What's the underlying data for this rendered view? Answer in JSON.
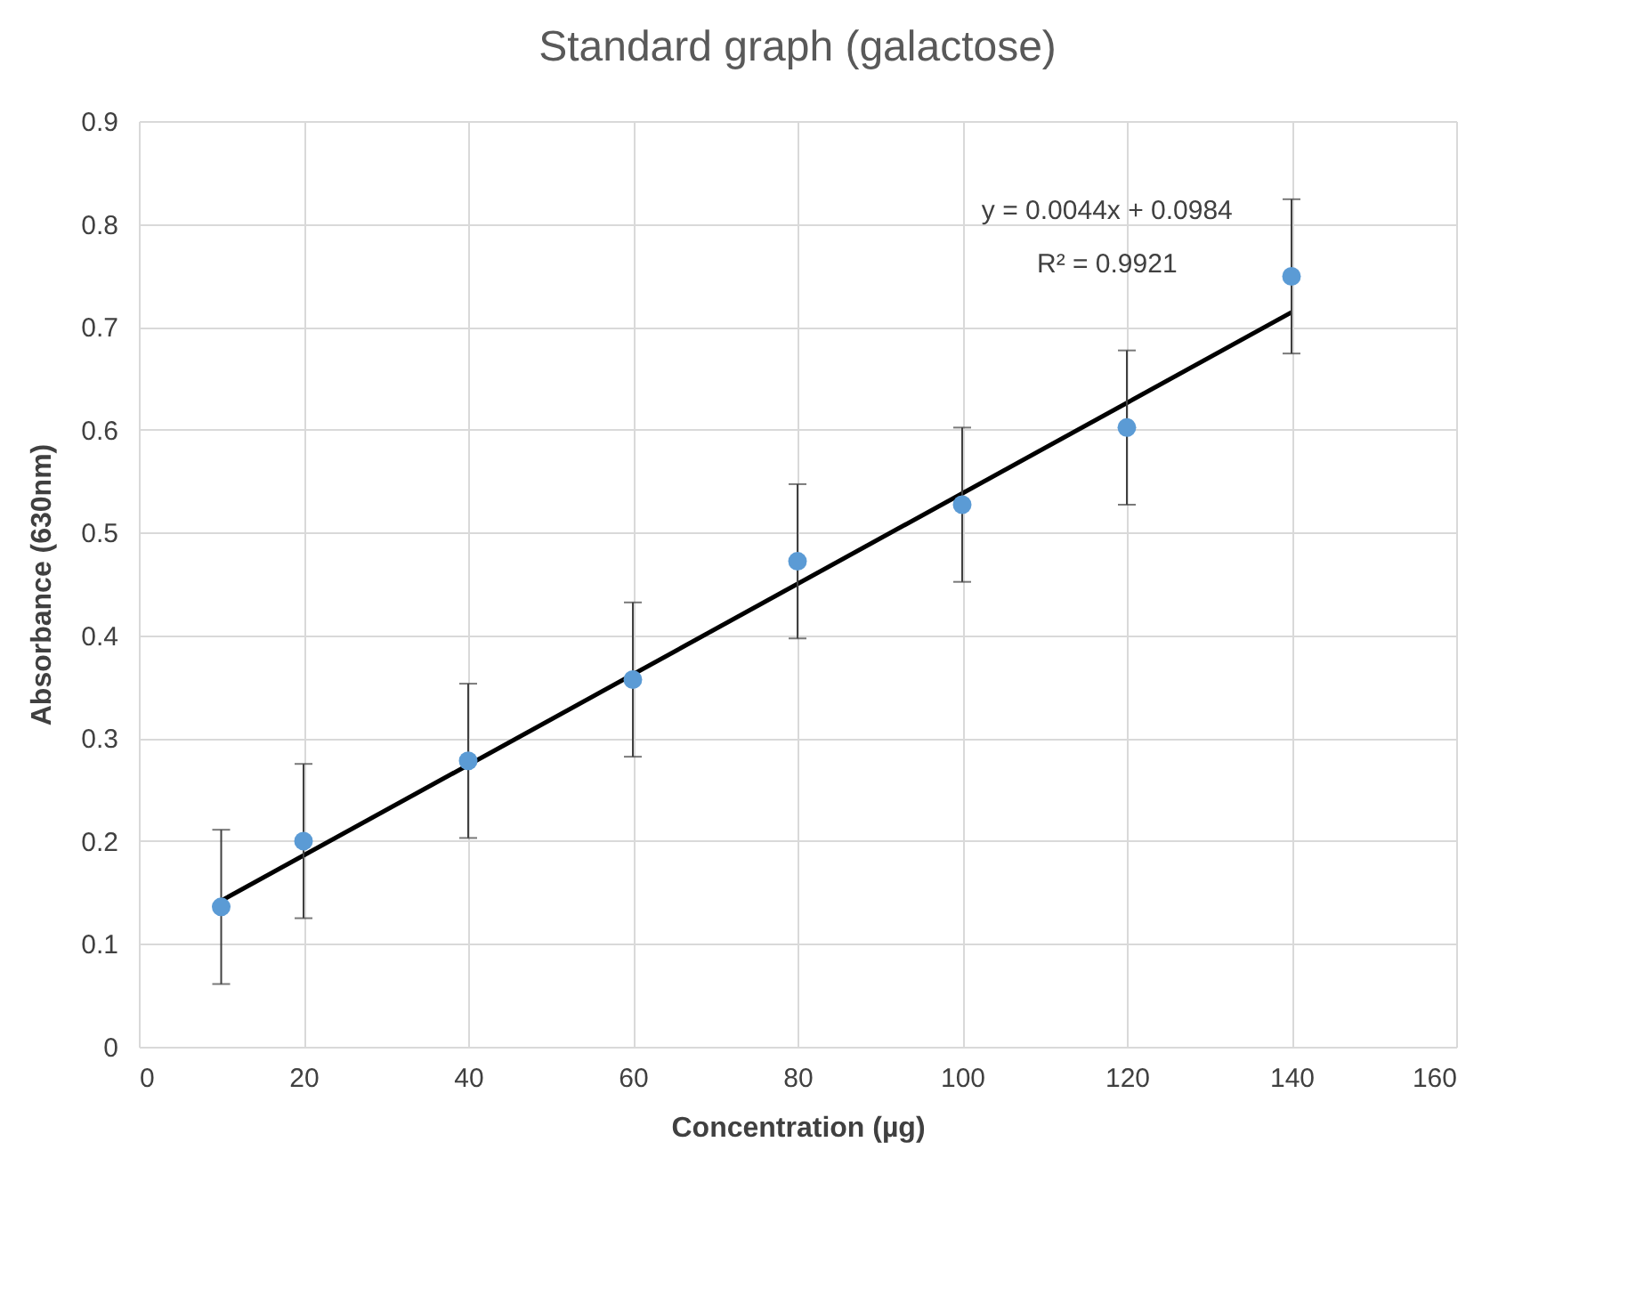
{
  "chart_data": {
    "type": "scatter",
    "title": "Standard graph (galactose)",
    "xlabel": "Concentration (µg)",
    "ylabel": "Absorbance (630nm)",
    "x": [
      10,
      20,
      40,
      60,
      80,
      100,
      120,
      140
    ],
    "series": [
      {
        "color": "#5b9bd5",
        "marker": "circle",
        "values": [
          0.136,
          0.2,
          0.278,
          0.357,
          0.472,
          0.527,
          0.602,
          0.749
        ],
        "errors": [
          0.075,
          0.075,
          0.075,
          0.075,
          0.075,
          0.075,
          0.075,
          0.075
        ]
      },
      {
        "type": "line",
        "color": "#000000",
        "marker": "none",
        "x": [
          10,
          140
        ],
        "values": [
          0.142,
          0.714
        ]
      }
    ],
    "xlim": [
      0,
      160
    ],
    "xticks": [
      0,
      20,
      40,
      60,
      80,
      100,
      120,
      140,
      160
    ],
    "ylim": [
      0,
      0.9
    ],
    "yticks": [
      0,
      0.1,
      0.2,
      0.3,
      0.4,
      0.5,
      0.6,
      0.7,
      0.8,
      0.9
    ],
    "grid": true,
    "annotations": [
      "y = 0.0044x + 0.0984",
      "R² = 0.9921"
    ]
  }
}
